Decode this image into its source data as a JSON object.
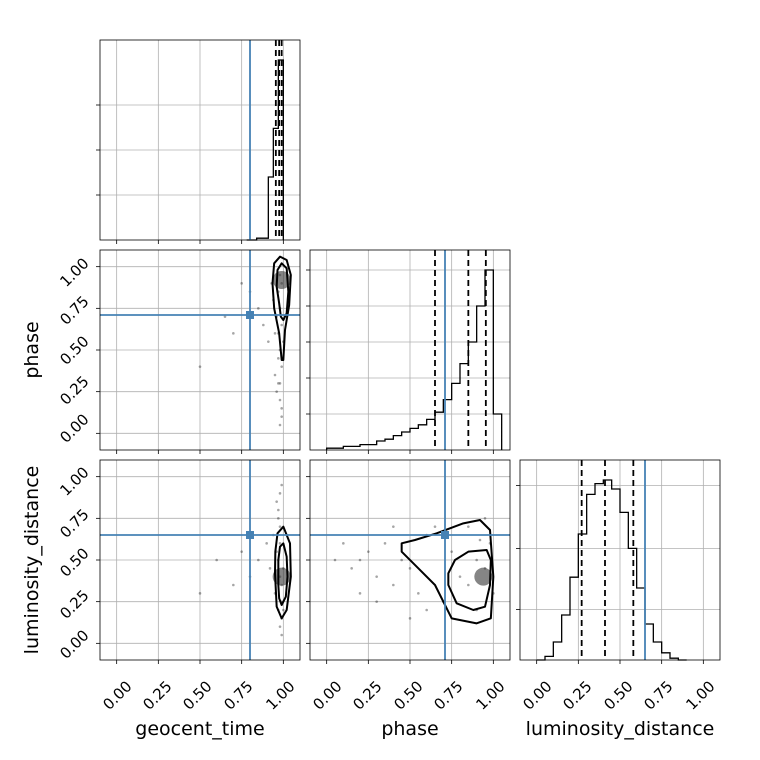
{
  "chart_data": {
    "type": "corner",
    "parameters": [
      "geocent_time",
      "phase",
      "luminosity_distance"
    ],
    "axis_labels": [
      "geocent_time",
      "phase",
      "luminosity_distance"
    ],
    "tick_values": [
      0.0,
      0.25,
      0.5,
      0.75,
      1.0
    ],
    "tick_labels": [
      "0.00",
      "0.25",
      "0.50",
      "0.75",
      "1.00"
    ],
    "axis_range": [
      -0.1,
      1.1
    ],
    "grid": true,
    "colors": {
      "truth": "#4682b4",
      "hist": "#000000",
      "quantile": "#000000",
      "point": "#000000"
    },
    "truths": {
      "geocent_time": 0.8,
      "phase": 0.71,
      "luminosity_distance": 0.65
    },
    "histograms": [
      {
        "parameter": "geocent_time",
        "bin_edges": [
          0.78,
          0.84,
          0.91,
          0.94,
          0.97,
          1.0
        ],
        "counts": [
          0.0,
          0.01,
          0.35,
          0.62,
          1.0
        ],
        "quantiles": [
          0.955,
          0.975,
          0.99
        ],
        "max_tick_fraction": [
          0.25,
          0.5,
          0.75
        ]
      },
      {
        "parameter": "phase",
        "bin_edges": [
          0.0,
          0.05,
          0.1,
          0.15,
          0.2,
          0.25,
          0.3,
          0.35,
          0.4,
          0.45,
          0.5,
          0.55,
          0.6,
          0.65,
          0.7,
          0.75,
          0.8,
          0.85,
          0.9,
          0.95,
          1.0,
          1.05
        ],
        "counts": [
          0.01,
          0.01,
          0.02,
          0.02,
          0.03,
          0.03,
          0.05,
          0.06,
          0.08,
          0.1,
          0.12,
          0.14,
          0.17,
          0.21,
          0.28,
          0.37,
          0.48,
          0.6,
          0.8,
          1.0,
          0.2
        ],
        "quantiles": [
          0.65,
          0.85,
          0.955
        ],
        "max_tick_fraction": [
          0.2,
          0.4,
          0.6,
          0.8,
          1.0
        ]
      },
      {
        "parameter": "luminosity_distance",
        "bin_edges": [
          0.0,
          0.05,
          0.1,
          0.15,
          0.2,
          0.25,
          0.3,
          0.35,
          0.4,
          0.45,
          0.5,
          0.55,
          0.6,
          0.65,
          0.7,
          0.75,
          0.8,
          0.85,
          0.9
        ],
        "counts": [
          0.0,
          0.02,
          0.1,
          0.25,
          0.46,
          0.7,
          0.92,
          0.98,
          1.0,
          0.95,
          0.82,
          0.62,
          0.4,
          0.2,
          0.1,
          0.04,
          0.01,
          0.0
        ],
        "quantiles": [
          0.27,
          0.41,
          0.58
        ],
        "max_tick_fraction": [
          0.28,
          0.62,
          0.97
        ]
      }
    ],
    "scatter": [
      {
        "x": "geocent_time",
        "y": "phase",
        "points": [
          [
            0.98,
            0.95
          ],
          [
            0.99,
            0.9
          ],
          [
            0.97,
            0.85
          ],
          [
            0.98,
            0.75
          ],
          [
            0.99,
            0.65
          ],
          [
            1.0,
            0.55
          ],
          [
            0.98,
            0.5
          ],
          [
            0.99,
            0.4
          ],
          [
            0.97,
            0.3
          ],
          [
            0.98,
            0.2
          ],
          [
            0.99,
            0.1
          ],
          [
            0.98,
            0.05
          ],
          [
            0.96,
            0.7
          ],
          [
            0.95,
            0.6
          ],
          [
            0.97,
            0.45
          ],
          [
            0.94,
            0.8
          ],
          [
            0.93,
            0.9
          ],
          [
            0.91,
            0.55
          ],
          [
            0.88,
            0.65
          ],
          [
            0.85,
            0.75
          ],
          [
            0.8,
            0.85
          ],
          [
            0.75,
            0.9
          ],
          [
            0.7,
            0.6
          ],
          [
            0.65,
            0.7
          ],
          [
            0.5,
            0.4
          ],
          [
            0.95,
            0.35
          ],
          [
            0.96,
            0.25
          ],
          [
            0.99,
            0.15
          ],
          [
            0.97,
            0.6
          ],
          [
            0.98,
            0.3
          ]
        ],
        "contours": [
          [
            [
              0.975,
              0.78
            ],
            [
              0.985,
              0.7
            ],
            [
              1.0,
              0.68
            ],
            [
              1.02,
              0.72
            ],
            [
              1.03,
              0.85
            ],
            [
              1.02,
              0.99
            ],
            [
              0.99,
              1.02
            ],
            [
              0.965,
              0.98
            ],
            [
              0.96,
              0.88
            ]
          ],
          [
            [
              0.935,
              0.9
            ],
            [
              0.945,
              0.75
            ],
            [
              0.975,
              0.6
            ],
            [
              0.99,
              0.44
            ],
            [
              1.0,
              0.44
            ],
            [
              1.01,
              0.62
            ],
            [
              1.035,
              0.77
            ],
            [
              1.045,
              0.95
            ],
            [
              1.02,
              1.04
            ],
            [
              0.98,
              1.06
            ],
            [
              0.945,
              1.02
            ]
          ]
        ],
        "density_peak": [
          0.99,
          0.92
        ]
      },
      {
        "x": "geocent_time",
        "y": "luminosity_distance",
        "points": [
          [
            0.98,
            0.4
          ],
          [
            0.99,
            0.35
          ],
          [
            0.97,
            0.5
          ],
          [
            0.98,
            0.6
          ],
          [
            0.99,
            0.25
          ],
          [
            1.0,
            0.45
          ],
          [
            0.98,
            0.7
          ],
          [
            0.97,
            0.8
          ],
          [
            0.99,
            0.15
          ],
          [
            0.98,
            0.9
          ],
          [
            0.96,
            0.55
          ],
          [
            0.95,
            0.3
          ],
          [
            0.97,
            0.2
          ],
          [
            0.94,
            0.65
          ],
          [
            0.92,
            0.45
          ],
          [
            0.9,
            0.6
          ],
          [
            0.85,
            0.5
          ],
          [
            0.8,
            0.4
          ],
          [
            0.75,
            0.55
          ],
          [
            0.7,
            0.35
          ],
          [
            0.6,
            0.5
          ],
          [
            0.5,
            0.3
          ],
          [
            0.99,
            0.05
          ],
          [
            0.98,
            0.1
          ],
          [
            0.97,
            0.75
          ],
          [
            0.96,
            0.85
          ],
          [
            0.99,
            0.95
          ],
          [
            1.0,
            0.2
          ]
        ],
        "contours": [
          [
            [
              0.97,
              0.35
            ],
            [
              0.975,
              0.27
            ],
            [
              0.99,
              0.23
            ],
            [
              1.015,
              0.28
            ],
            [
              1.025,
              0.4
            ],
            [
              1.02,
              0.52
            ],
            [
              1.0,
              0.6
            ],
            [
              0.98,
              0.58
            ],
            [
              0.97,
              0.5
            ]
          ],
          [
            [
              0.95,
              0.42
            ],
            [
              0.96,
              0.22
            ],
            [
              0.99,
              0.15
            ],
            [
              1.02,
              0.2
            ],
            [
              1.045,
              0.4
            ],
            [
              1.04,
              0.6
            ],
            [
              1.0,
              0.7
            ],
            [
              0.965,
              0.66
            ],
            [
              0.952,
              0.55
            ]
          ]
        ],
        "density_peak": [
          0.99,
          0.4
        ]
      },
      {
        "x": "phase",
        "y": "luminosity_distance",
        "points": [
          [
            0.1,
            0.6
          ],
          [
            0.15,
            0.45
          ],
          [
            0.2,
            0.5
          ],
          [
            0.25,
            0.55
          ],
          [
            0.3,
            0.4
          ],
          [
            0.35,
            0.6
          ],
          [
            0.4,
            0.35
          ],
          [
            0.45,
            0.5
          ],
          [
            0.5,
            0.45
          ],
          [
            0.55,
            0.3
          ],
          [
            0.6,
            0.65
          ],
          [
            0.65,
            0.7
          ],
          [
            0.7,
            0.25
          ],
          [
            0.75,
            0.55
          ],
          [
            0.8,
            0.4
          ],
          [
            0.85,
            0.35
          ],
          [
            0.9,
            0.5
          ],
          [
            0.95,
            0.45
          ],
          [
            1.0,
            0.3
          ],
          [
            0.9,
            0.2
          ],
          [
            0.85,
            0.7
          ],
          [
            0.95,
            0.75
          ],
          [
            0.6,
            0.2
          ],
          [
            0.5,
            0.15
          ],
          [
            0.4,
            0.7
          ],
          [
            0.3,
            0.25
          ],
          [
            0.2,
            0.3
          ],
          [
            0.05,
            0.5
          ],
          [
            0.98,
            0.6
          ],
          [
            0.92,
            0.62
          ]
        ],
        "contours": [
          [
            [
              0.73,
              0.35
            ],
            [
              0.78,
              0.24
            ],
            [
              0.88,
              0.2
            ],
            [
              0.95,
              0.22
            ],
            [
              0.98,
              0.35
            ],
            [
              0.985,
              0.5
            ],
            [
              0.96,
              0.56
            ],
            [
              0.85,
              0.55
            ],
            [
              0.77,
              0.5
            ],
            [
              0.73,
              0.42
            ]
          ],
          [
            [
              0.45,
              0.55
            ],
            [
              0.55,
              0.45
            ],
            [
              0.65,
              0.35
            ],
            [
              0.75,
              0.15
            ],
            [
              0.9,
              0.12
            ],
            [
              0.985,
              0.15
            ],
            [
              1.0,
              0.4
            ],
            [
              0.98,
              0.68
            ],
            [
              0.92,
              0.74
            ],
            [
              0.82,
              0.72
            ],
            [
              0.66,
              0.66
            ],
            [
              0.53,
              0.62
            ],
            [
              0.45,
              0.6
            ]
          ]
        ],
        "density_peak": [
          0.94,
          0.4
        ]
      }
    ]
  }
}
